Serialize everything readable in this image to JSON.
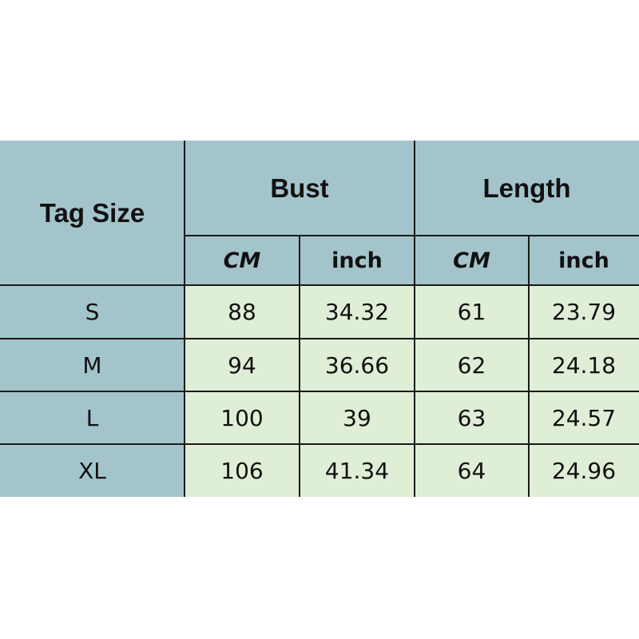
{
  "colors": {
    "header_bg": "#a4c4cb",
    "body_bg": "#dfeed6",
    "border": "#1a1a1a"
  },
  "header": {
    "tag_size": "Tag Size",
    "bust": "Bust",
    "length": "Length",
    "units": [
      "CM",
      "inch",
      "CM",
      "inch"
    ]
  },
  "rows": [
    {
      "size": "S",
      "bust_cm": "88",
      "bust_inch": "34.32",
      "length_cm": "61",
      "length_inch": "23.79"
    },
    {
      "size": "M",
      "bust_cm": "94",
      "bust_inch": "36.66",
      "length_cm": "62",
      "length_inch": "24.18"
    },
    {
      "size": "L",
      "bust_cm": "100",
      "bust_inch": "39",
      "length_cm": "63",
      "length_inch": "24.57"
    },
    {
      "size": "XL",
      "bust_cm": "106",
      "bust_inch": "41.34",
      "length_cm": "64",
      "length_inch": "24.96"
    }
  ]
}
